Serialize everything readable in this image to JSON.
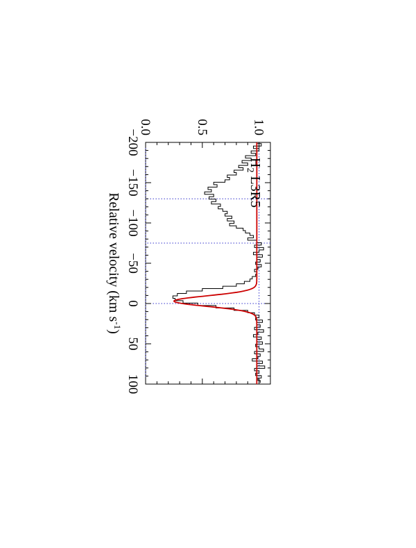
{
  "chart_data": {
    "type": "line",
    "orientation": "rotated-90-clockwise",
    "panel_label": {
      "main": "H",
      "sub": "2",
      "rest": " L3R5"
    },
    "xlabel": {
      "main": "Relative velocity (km s",
      "sup": "-1",
      "close": ")"
    },
    "ylabel": "",
    "xlim": [
      -200,
      100
    ],
    "ylim": [
      0.0,
      1.1
    ],
    "x_ticks": [
      {
        "value": -200,
        "label": "−200"
      },
      {
        "value": -150,
        "label": "−150"
      },
      {
        "value": -100,
        "label": "−100"
      },
      {
        "value": -50,
        "label": "−50"
      },
      {
        "value": 0,
        "label": "0"
      },
      {
        "value": 50,
        "label": "50"
      },
      {
        "value": 100,
        "label": "100"
      }
    ],
    "y_ticks": [
      {
        "value": 0.0,
        "label": "0.0"
      },
      {
        "value": 0.5,
        "label": "0.5"
      },
      {
        "value": 1.0,
        "label": "1.0"
      }
    ],
    "reference_lines": {
      "vertical_dotted_x": [
        -130,
        -75,
        0
      ],
      "horizontal_dotted_y": [
        0.0,
        1.0
      ],
      "color": "#3333cc"
    },
    "series": [
      {
        "style": "histogram-step",
        "color": "#000000",
        "x": [
          -200,
          -197,
          -194,
          -191,
          -188,
          -185,
          -182,
          -179,
          -176,
          -173,
          -170,
          -167,
          -164,
          -161,
          -158,
          -155,
          -152,
          -149,
          -146,
          -143,
          -140,
          -137,
          -134,
          -131,
          -128,
          -125,
          -122,
          -119,
          -116,
          -113,
          -110,
          -107,
          -104,
          -101,
          -98,
          -95,
          -92,
          -89,
          -86,
          -83,
          -80,
          -77,
          -74,
          -71,
          -68,
          -65,
          -62,
          -59,
          -56,
          -53,
          -50,
          -47,
          -44,
          -41,
          -38,
          -35,
          -32,
          -29,
          -26,
          -23,
          -20,
          -17,
          -14,
          -11,
          -8,
          -5,
          -2,
          1,
          4,
          7,
          10,
          13,
          16,
          19,
          22,
          25,
          28,
          31,
          34,
          37,
          40,
          43,
          46,
          49,
          52,
          55,
          58,
          61,
          64,
          67,
          70,
          73,
          76,
          79,
          82,
          85,
          88,
          91,
          94,
          97
        ],
        "values": [
          0.98,
          1.02,
          0.95,
          1.0,
          0.93,
          0.97,
          0.88,
          0.93,
          0.85,
          0.9,
          0.82,
          0.86,
          0.78,
          0.8,
          0.72,
          0.74,
          0.7,
          0.6,
          0.63,
          0.55,
          0.58,
          0.52,
          0.6,
          0.56,
          0.62,
          0.58,
          0.66,
          0.64,
          0.68,
          0.72,
          0.7,
          0.76,
          0.72,
          0.78,
          0.74,
          0.8,
          0.86,
          0.88,
          0.92,
          0.95,
          0.9,
          0.98,
          1.02,
          0.96,
          1.04,
          1.0,
          0.95,
          1.03,
          0.98,
          1.01,
          0.97,
          1.02,
          0.99,
          0.96,
          0.98,
          0.97,
          0.94,
          0.92,
          0.87,
          0.8,
          0.68,
          0.5,
          0.36,
          0.28,
          0.24,
          0.26,
          0.33,
          0.46,
          0.62,
          0.78,
          0.9,
          0.96,
          1.0,
          0.97,
          1.03,
          0.98,
          1.01,
          0.96,
          1.04,
          0.99,
          0.95,
          1.02,
          0.98,
          1.03,
          0.97,
          1.0,
          1.04,
          0.96,
          1.01,
          0.99,
          0.94,
          1.03,
          0.98,
          1.05,
          0.96,
          1.0,
          0.97,
          1.02,
          0.99,
          1.01
        ]
      },
      {
        "style": "model-line",
        "color": "#cc0000",
        "continuum": 0.98,
        "components": [
          {
            "center": -3,
            "depth": 0.73,
            "sigma": 6.5
          }
        ]
      }
    ],
    "grid": false,
    "legend": "none"
  }
}
